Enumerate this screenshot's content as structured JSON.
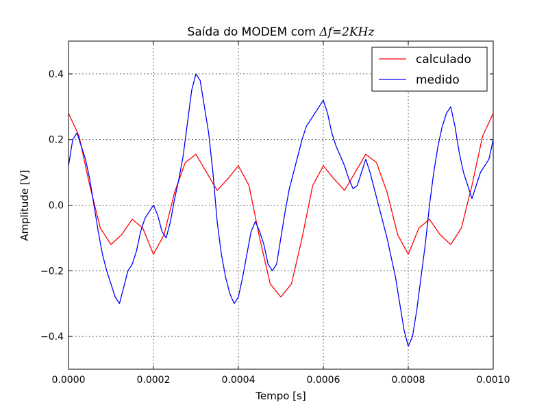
{
  "chart_data": {
    "type": "line",
    "title": "Saída do MODEM com Δf=2KHz",
    "title_prefix": "Saída do MODEM com ",
    "title_math": "Δf=2KHz",
    "xlabel": "Tempo [s]",
    "ylabel": "Amplitude [V]",
    "xlim": [
      0,
      0.001
    ],
    "ylim": [
      -0.5,
      0.5
    ],
    "xticks": [
      0,
      0.0002,
      0.0004,
      0.0006,
      0.0008,
      0.001
    ],
    "xtick_labels": [
      "0.0000",
      "0.0002",
      "0.0004",
      "0.0006",
      "0.0008",
      "0.0010"
    ],
    "yticks": [
      -0.4,
      -0.2,
      0.0,
      0.2,
      0.4
    ],
    "ytick_labels": [
      "−0.4",
      "−0.2",
      "0.0",
      "0.2",
      "0.4"
    ],
    "grid": true,
    "legend_position": "top-right",
    "series": [
      {
        "name": "calculado",
        "color": "#ff0000",
        "x": [
          0,
          2.5e-05,
          5e-05,
          7.5e-05,
          0.0001,
          0.000125,
          0.00015,
          0.000175,
          0.0002,
          0.000225,
          0.00025,
          0.000275,
          0.0003,
          0.000325,
          0.00035,
          0.000375,
          0.0004,
          0.000425,
          0.00045,
          0.000475,
          0.0005,
          0.000525,
          0.00055,
          0.000575,
          0.0006,
          0.000625,
          0.00065,
          0.000675,
          0.0007,
          0.000725,
          0.00075,
          0.000775,
          0.0008,
          0.000825,
          0.00085,
          0.000875,
          0.0009,
          0.000925,
          0.00095,
          0.000975,
          0.001
        ],
        "y": [
          0.28,
          0.21,
          0.06,
          -0.07,
          -0.12,
          -0.09,
          -0.043,
          -0.07,
          -0.15,
          -0.09,
          0.04,
          0.13,
          0.155,
          0.1,
          0.045,
          0.08,
          0.12,
          0.06,
          -0.1,
          -0.24,
          -0.28,
          -0.24,
          -0.1,
          0.06,
          0.12,
          0.08,
          0.045,
          0.1,
          0.155,
          0.13,
          0.04,
          -0.09,
          -0.15,
          -0.07,
          -0.043,
          -0.09,
          -0.12,
          -0.07,
          0.06,
          0.21,
          0.28
        ]
      },
      {
        "name": "medido",
        "color": "#0000ff",
        "x": [
          0,
          1e-05,
          2e-05,
          3e-05,
          4e-05,
          5e-05,
          6e-05,
          7e-05,
          8e-05,
          9e-05,
          0.0001,
          0.00011,
          0.00012,
          0.00013,
          0.00014,
          0.00015,
          0.00016,
          0.00017,
          0.00018,
          0.00019,
          0.0002,
          0.00021,
          0.00022,
          0.00023,
          0.00024,
          0.00025,
          0.00026,
          0.00027,
          0.00028,
          0.00029,
          0.0003,
          0.00031,
          0.00032,
          0.00033,
          0.00034,
          0.00035,
          0.00036,
          0.00037,
          0.00038,
          0.00039,
          0.0004,
          0.00041,
          0.00042,
          0.00043,
          0.00044,
          0.00045,
          0.00046,
          0.00047,
          0.00048,
          0.00049,
          0.0005,
          0.00051,
          0.00052,
          0.00053,
          0.00054,
          0.00055,
          0.00056,
          0.00057,
          0.00058,
          0.00059,
          0.0006,
          0.00061,
          0.00062,
          0.00063,
          0.00064,
          0.00065,
          0.00066,
          0.00067,
          0.00068,
          0.00069,
          0.0007,
          0.00071,
          0.00072,
          0.00073,
          0.00074,
          0.00075,
          0.00076,
          0.00077,
          0.00078,
          0.00079,
          0.0008,
          0.00081,
          0.00082,
          0.00083,
          0.00084,
          0.00085,
          0.00086,
          0.00087,
          0.00088,
          0.00089,
          0.0009,
          0.00091,
          0.00092,
          0.00093,
          0.00094,
          0.00095,
          0.00096,
          0.00097,
          0.00098,
          0.00099,
          0.001
        ],
        "y": [
          0.12,
          0.2,
          0.22,
          0.18,
          0.14,
          0.08,
          0.0,
          -0.08,
          -0.15,
          -0.2,
          -0.24,
          -0.28,
          -0.3,
          -0.25,
          -0.2,
          -0.18,
          -0.14,
          -0.08,
          -0.04,
          -0.02,
          0.0,
          -0.03,
          -0.08,
          -0.1,
          -0.05,
          0.02,
          0.08,
          0.15,
          0.25,
          0.35,
          0.4,
          0.38,
          0.3,
          0.22,
          0.1,
          -0.05,
          -0.15,
          -0.22,
          -0.27,
          -0.3,
          -0.28,
          -0.22,
          -0.15,
          -0.08,
          -0.05,
          -0.08,
          -0.12,
          -0.18,
          -0.2,
          -0.18,
          -0.1,
          -0.02,
          0.05,
          0.1,
          0.15,
          0.2,
          0.24,
          0.26,
          0.28,
          0.3,
          0.32,
          0.28,
          0.22,
          0.18,
          0.15,
          0.12,
          0.08,
          0.05,
          0.06,
          0.1,
          0.14,
          0.1,
          0.05,
          0.0,
          -0.05,
          -0.1,
          -0.16,
          -0.22,
          -0.3,
          -0.38,
          -0.43,
          -0.4,
          -0.32,
          -0.22,
          -0.12,
          0.0,
          0.1,
          0.18,
          0.24,
          0.28,
          0.3,
          0.24,
          0.16,
          0.1,
          0.06,
          0.02,
          0.06,
          0.1,
          0.12,
          0.14,
          0.2
        ]
      }
    ]
  }
}
